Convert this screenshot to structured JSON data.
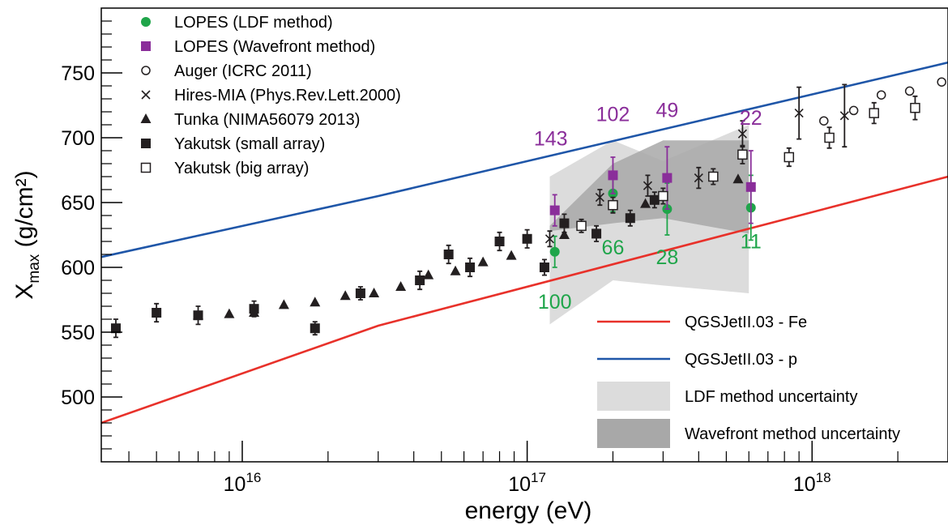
{
  "chart_data": {
    "type": "scatter",
    "xlabel": "energy (eV)",
    "ylabel_main": "X",
    "ylabel_sub": "max",
    "ylabel_unit": "(g/cm²)",
    "x_scale": "log",
    "xlim": [
      3200000000000000.0,
      3e+18
    ],
    "ylim": [
      450,
      800
    ],
    "y_ticks": [
      500,
      550,
      600,
      650,
      700,
      750
    ],
    "x_ticks": [
      {
        "value": 1e+16,
        "base": "10",
        "exp": "16"
      },
      {
        "value": 1e+17,
        "base": "10",
        "exp": "17"
      },
      {
        "value": 1e+18,
        "base": "10",
        "exp": "18"
      }
    ],
    "grid": false,
    "legend_position": "top-left",
    "colors": {
      "lopes_ldf": "#1fa54a",
      "lopes_wavefront": "#8a2e9a",
      "fe": "#e8312a",
      "p": "#1f56a8",
      "ldf_band": "#dcdcdc",
      "wf_band": "#a8a8a8",
      "data": "#231f20"
    },
    "legend_top": [
      {
        "name": "LOPES (LDF method)",
        "marker": "circle-filled",
        "color": "#1fa54a"
      },
      {
        "name": "LOPES (Wavefront method)",
        "marker": "square-filled",
        "color": "#8a2e9a"
      },
      {
        "name": "Auger (ICRC 2011)",
        "marker": "circle-open",
        "color": "#231f20"
      },
      {
        "name": "Hires-MIA (Phys.Rev.Lett.2000)",
        "marker": "cross",
        "color": "#231f20"
      },
      {
        "name": "Tunka (NIMA56079 2013)",
        "marker": "triangle-filled",
        "color": "#231f20"
      },
      {
        "name": "Yakutsk (small array)",
        "marker": "square-filled",
        "color": "#231f20"
      },
      {
        "name": "Yakutsk (big array)",
        "marker": "square-open",
        "color": "#231f20"
      }
    ],
    "legend_bottom": [
      {
        "name": "QGSJetII.03 - Fe",
        "kind": "line",
        "color": "#e8312a"
      },
      {
        "name": "QGSJetII.03 - p",
        "kind": "line",
        "color": "#1f56a8"
      },
      {
        "name": "LDF method uncertainty",
        "kind": "band",
        "color": "#dcdcdc"
      },
      {
        "name": "Wavefront method uncertainty",
        "kind": "band",
        "color": "#a8a8a8"
      }
    ],
    "lines": [
      {
        "name": "QGSJetII.03 - Fe",
        "color": "#e8312a",
        "points": [
          [
            3200000000000000.0,
            480
          ],
          [
            3e+16,
            555
          ],
          [
            3e+18,
            670
          ]
        ]
      },
      {
        "name": "QGSJetII.03 - p",
        "color": "#1f56a8",
        "points": [
          [
            3200000000000000.0,
            608
          ],
          [
            3e+16,
            655
          ],
          [
            3e+18,
            758
          ]
        ]
      }
    ],
    "bands": [
      {
        "name": "LDF method uncertainty",
        "color": "#dcdcdc",
        "upper": [
          [
            1.2e+17,
            670
          ],
          [
            2e+17,
            698
          ],
          [
            3e+17,
            682
          ],
          [
            6e+17,
            710
          ]
        ],
        "lower": [
          [
            1.2e+17,
            556
          ],
          [
            2e+17,
            590
          ],
          [
            3e+17,
            586
          ],
          [
            6e+17,
            580
          ]
        ]
      },
      {
        "name": "Wavefront method uncertainty",
        "color": "#a8a8a8",
        "upper": [
          [
            1.2e+17,
            632
          ],
          [
            2e+17,
            680
          ],
          [
            3e+17,
            698
          ],
          [
            6e+17,
            698
          ]
        ],
        "lower": [
          [
            1.2e+17,
            628
          ],
          [
            2e+17,
            634
          ],
          [
            3e+17,
            638
          ],
          [
            6e+17,
            626
          ]
        ]
      }
    ],
    "series": [
      {
        "name": "LOPES (LDF method)",
        "marker": "circle-filled",
        "color": "#1fa54a",
        "x": [
          1.25e+17,
          2e+17,
          3.1e+17,
          6.1e+17
        ],
        "y": [
          612,
          657,
          645,
          646
        ],
        "err": [
          12,
          14,
          20,
          25
        ],
        "counts": [
          "100",
          "66",
          "28",
          "11"
        ]
      },
      {
        "name": "LOPES (Wavefront method)",
        "marker": "square-filled",
        "color": "#8a2e9a",
        "x": [
          1.25e+17,
          2e+17,
          3.1e+17,
          6.1e+17
        ],
        "y": [
          644,
          671,
          669,
          662
        ],
        "err": [
          12,
          14,
          24,
          28
        ],
        "counts": [
          "143",
          "102",
          "49",
          "22"
        ]
      },
      {
        "name": "Auger (ICRC 2011)",
        "marker": "circle-open",
        "color": "#231f20",
        "x": [
          1.1e+18,
          1.4e+18,
          1.75e+18,
          2.2e+18,
          2.85e+18
        ],
        "y": [
          713,
          721,
          733,
          736,
          743
        ],
        "err": [
          0,
          0,
          0,
          0,
          0
        ]
      },
      {
        "name": "Hires-MIA (Phys.Rev.Lett.2000)",
        "marker": "cross",
        "color": "#231f20",
        "x": [
          1.2e+17,
          1.8e+17,
          2.65e+17,
          4e+17,
          5.7e+17,
          9e+17,
          1.3e+18
        ],
        "y": [
          622,
          654,
          663,
          669,
          703,
          719,
          717
        ],
        "err": [
          6,
          6,
          8,
          8,
          10,
          20,
          24
        ]
      },
      {
        "name": "Tunka (NIMA56079 2013)",
        "marker": "triangle-filled",
        "color": "#231f20",
        "x": [
          7000000000000000.0,
          9000000000000000.0,
          1.1e+16,
          1.4e+16,
          1.8e+16,
          2.3e+16,
          2.9e+16,
          3.6e+16,
          4.5e+16,
          5.6e+16,
          7e+16,
          8.8e+16,
          1.35e+17,
          2.6e+17,
          5.5e+17
        ],
        "y": [
          563,
          564,
          565,
          571,
          573,
          578,
          580,
          585,
          594,
          597,
          604,
          609,
          625,
          649,
          668
        ],
        "err": [
          0,
          0,
          0,
          0,
          0,
          0,
          0,
          0,
          0,
          0,
          0,
          0,
          0,
          0,
          0
        ]
      },
      {
        "name": "Yakutsk (small array)",
        "marker": "square-filled",
        "color": "#231f20",
        "x": [
          3600000000000000.0,
          5000000000000000.0,
          7000000000000000.0,
          1.1e+16,
          1.8e+16,
          2.6e+16,
          4.2e+16,
          5.3e+16,
          6.3e+16,
          8e+16,
          1e+17,
          1.15e+17,
          1.35e+17,
          1.75e+17,
          2.3e+17,
          2.8e+17
        ],
        "y": [
          553,
          565,
          563,
          568,
          553,
          580,
          590,
          610,
          600,
          620,
          622,
          600,
          634,
          626,
          638,
          652
        ],
        "err": [
          7,
          7,
          7,
          6,
          5,
          5,
          7,
          7,
          7,
          7,
          7,
          6,
          7,
          6,
          6,
          6
        ]
      },
      {
        "name": "Yakutsk (big array)",
        "marker": "square-open",
        "color": "#231f20",
        "x": [
          1.55e+17,
          2e+17,
          3e+17,
          4.5e+17,
          5.7e+17,
          8.3e+17,
          1.15e+18,
          1.65e+18,
          2.3e+18
        ],
        "y": [
          632,
          648,
          655,
          670,
          687,
          685,
          700,
          719,
          723
        ],
        "err": [
          5,
          6,
          6,
          6,
          7,
          7,
          8,
          8,
          9
        ]
      }
    ]
  }
}
